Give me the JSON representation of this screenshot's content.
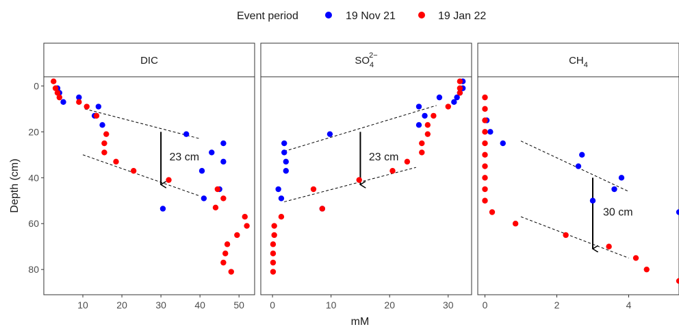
{
  "legend": {
    "title": "Event period",
    "items": [
      {
        "label": "19 Nov 21",
        "color": "#0000ff"
      },
      {
        "label": "19 Jan 22",
        "color": "#ff0000"
      }
    ]
  },
  "chart_data": {
    "type": "scatter",
    "xlabel": "mM",
    "ylabel": "Depth (cm)",
    "ylim": [
      0,
      90
    ],
    "y_reversed": true,
    "y_ticks": [
      0,
      20,
      40,
      60,
      80
    ],
    "grid": false,
    "legend_position": "top",
    "panels": [
      {
        "title": "DIC",
        "xlim": [
          0,
          54
        ],
        "x_ticks": [
          10,
          20,
          30,
          40,
          50
        ],
        "series": [
          {
            "name": "19 Nov 21",
            "color": "#0000ff",
            "points": [
              [
                3.5,
                1
              ],
              [
                4,
                3
              ],
              [
                5,
                7
              ],
              [
                9,
                5
              ],
              [
                14,
                9
              ],
              [
                13,
                13
              ],
              [
                15,
                17
              ],
              [
                36.5,
                21
              ],
              [
                43,
                29
              ],
              [
                46,
                25
              ],
              [
                46,
                33
              ],
              [
                40.5,
                37
              ],
              [
                41,
                49
              ],
              [
                45,
                45
              ],
              [
                30.5,
                53.5
              ]
            ]
          },
          {
            "name": "19 Jan 22",
            "color": "#ff0000",
            "points": [
              [
                2.5,
                -2
              ],
              [
                3,
                1
              ],
              [
                3.5,
                3
              ],
              [
                4,
                5
              ],
              [
                9,
                7
              ],
              [
                11,
                9
              ],
              [
                13.5,
                13
              ],
              [
                16,
                21
              ],
              [
                15.5,
                25
              ],
              [
                15.5,
                29
              ],
              [
                18.5,
                33
              ],
              [
                23,
                37
              ],
              [
                32,
                41
              ],
              [
                44.5,
                45
              ],
              [
                46,
                49
              ],
              [
                44,
                53
              ],
              [
                51.5,
                57
              ],
              [
                52,
                61
              ],
              [
                49.5,
                65
              ],
              [
                47,
                69
              ],
              [
                46.5,
                73
              ],
              [
                46,
                77
              ],
              [
                48,
                81
              ]
            ]
          }
        ],
        "trend_lines": [
          [
            [
              10.5,
              10
            ],
            [
              40,
              23
            ]
          ],
          [
            [
              10,
              30
            ],
            [
              40,
              48
            ]
          ]
        ],
        "arrow": {
          "x": 30,
          "from": 20,
          "to": 43
        },
        "annotation": {
          "text": "23 cm",
          "x": 36,
          "y": 31
        }
      },
      {
        "title_main": "SO",
        "title_sub": "4",
        "title_sup": "2−",
        "xlim": [
          -2,
          34
        ],
        "x_ticks": [
          0,
          10,
          20,
          30
        ],
        "series": [
          {
            "name": "19 Nov 21",
            "color": "#0000ff",
            "points": [
              [
                32.5,
                -2
              ],
              [
                32.5,
                1
              ],
              [
                32,
                3
              ],
              [
                31.5,
                5
              ],
              [
                31,
                7
              ],
              [
                25,
                9
              ],
              [
                26,
                13
              ],
              [
                25,
                17
              ],
              [
                28.5,
                5
              ],
              [
                9.8,
                21
              ],
              [
                2,
                25
              ],
              [
                2,
                29
              ],
              [
                2.3,
                33
              ],
              [
                2.3,
                37
              ],
              [
                1,
                45
              ],
              [
                1.5,
                49
              ],
              [
                8.5,
                53.5
              ]
            ]
          },
          {
            "name": "19 Jan 22",
            "color": "#ff0000",
            "points": [
              [
                32,
                -2
              ],
              [
                32,
                1
              ],
              [
                32,
                3
              ],
              [
                30,
                9
              ],
              [
                27.5,
                13
              ],
              [
                26.5,
                17
              ],
              [
                26.5,
                21
              ],
              [
                25.5,
                25
              ],
              [
                25.5,
                29
              ],
              [
                23,
                33
              ],
              [
                20.5,
                37
              ],
              [
                14.8,
                41
              ],
              [
                7,
                45
              ],
              [
                8.5,
                53.5
              ],
              [
                1.5,
                57
              ],
              [
                0.3,
                61
              ],
              [
                0.3,
                65
              ],
              [
                0.1,
                69
              ],
              [
                0.1,
                73
              ],
              [
                0.1,
                77
              ],
              [
                0.1,
                81
              ]
            ]
          }
        ],
        "trend_lines": [
          [
            [
              2,
              28.5
            ],
            [
              28,
              8.5
            ]
          ],
          [
            [
              2,
              50.5
            ],
            [
              24.5,
              35.5
            ]
          ]
        ],
        "arrow": {
          "x": 15,
          "from": 20,
          "to": 43
        },
        "annotation": {
          "text": "23 cm",
          "x": 19,
          "y": 31
        }
      },
      {
        "title_main": "CH",
        "title_sub": "4",
        "xlim": [
          -0.2,
          5.4
        ],
        "x_ticks": [
          0,
          2,
          4
        ],
        "series": [
          {
            "name": "19 Nov 21",
            "color": "#0000ff",
            "points": [
              [
                0.05,
                15
              ],
              [
                0.15,
                20
              ],
              [
                0.5,
                25
              ],
              [
                2.7,
                30
              ],
              [
                2.6,
                35
              ],
              [
                3.8,
                40
              ],
              [
                3.6,
                45
              ],
              [
                3,
                50
              ],
              [
                5.4,
                55
              ]
            ]
          },
          {
            "name": "19 Jan 22",
            "color": "#ff0000",
            "points": [
              [
                0,
                5
              ],
              [
                0,
                10
              ],
              [
                0,
                15
              ],
              [
                0,
                20
              ],
              [
                0,
                25
              ],
              [
                0,
                30
              ],
              [
                0,
                35
              ],
              [
                0,
                40
              ],
              [
                0,
                45
              ],
              [
                0,
                50
              ],
              [
                0.2,
                55
              ],
              [
                0.85,
                60
              ],
              [
                2.25,
                65
              ],
              [
                3.45,
                70
              ],
              [
                4.2,
                75
              ],
              [
                4.5,
                80
              ],
              [
                5.4,
                85
              ]
            ]
          }
        ],
        "trend_lines": [
          [
            [
              1,
              24
            ],
            [
              4,
              46
            ]
          ],
          [
            [
              1,
              57
            ],
            [
              4,
              75
            ]
          ]
        ],
        "arrow": {
          "x": 3,
          "from": 40,
          "to": 71
        },
        "annotation": {
          "text": "30 cm",
          "x": 3.7,
          "y": 55
        }
      }
    ]
  }
}
